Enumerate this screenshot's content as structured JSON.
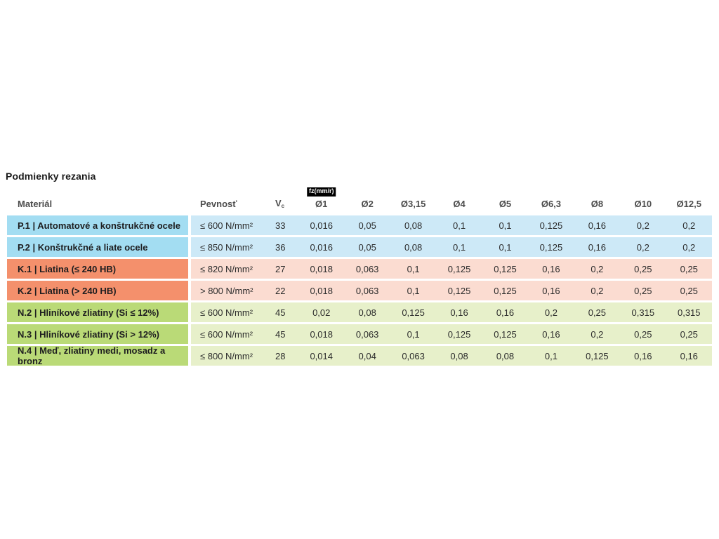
{
  "title": "Podmienky rezania",
  "table": {
    "header": {
      "material": "Materiál",
      "strength": "Pevnosť",
      "vc_base": "V",
      "vc_sub": "c",
      "feed_badge": "fz(mm/r)",
      "diameters": [
        "Ø1",
        "Ø2",
        "Ø3,15",
        "Ø4",
        "Ø5",
        "Ø6,3",
        "Ø8",
        "Ø10",
        "Ø12,5"
      ]
    },
    "group_colors": {
      "P": {
        "label_bg": "#a3ddf2",
        "row_bg": "#cde9f7"
      },
      "K": {
        "label_bg": "#f4906c",
        "row_bg": "#fbdcd1"
      },
      "N": {
        "label_bg": "#bada77",
        "row_bg": "#e7f0ca"
      }
    },
    "rows": [
      {
        "group": "P",
        "material": "P.1 | Automatové a konštrukčné ocele",
        "strength": "≤ 600 N/mm²",
        "vc": "33",
        "feeds": [
          "0,016",
          "0,05",
          "0,08",
          "0,1",
          "0,1",
          "0,125",
          "0,16",
          "0,2",
          "0,2"
        ]
      },
      {
        "group": "P",
        "material": "P.2 | Konštrukčné a liate ocele",
        "strength": "≤ 850 N/mm²",
        "vc": "36",
        "feeds": [
          "0,016",
          "0,05",
          "0,08",
          "0,1",
          "0,1",
          "0,125",
          "0,16",
          "0,2",
          "0,2"
        ]
      },
      {
        "group": "K",
        "material": "K.1 | Liatina (≤ 240 HB)",
        "strength": "≤ 820 N/mm²",
        "vc": "27",
        "feeds": [
          "0,018",
          "0,063",
          "0,1",
          "0,125",
          "0,125",
          "0,16",
          "0,2",
          "0,25",
          "0,25"
        ]
      },
      {
        "group": "K",
        "material": "K.2 | Liatina (> 240 HB)",
        "strength": "> 800 N/mm²",
        "vc": "22",
        "feeds": [
          "0,018",
          "0,063",
          "0,1",
          "0,125",
          "0,125",
          "0,16",
          "0,2",
          "0,25",
          "0,25"
        ]
      },
      {
        "group": "N",
        "material": "N.2 | Hliníkové zliatiny (Si ≤ 12%)",
        "strength": "≤ 600 N/mm²",
        "vc": "45",
        "feeds": [
          "0,02",
          "0,08",
          "0,125",
          "0,16",
          "0,16",
          "0,2",
          "0,25",
          "0,315",
          "0,315"
        ]
      },
      {
        "group": "N",
        "material": "N.3 | Hliníkové zliatiny (Si > 12%)",
        "strength": "≤ 600 N/mm²",
        "vc": "45",
        "feeds": [
          "0,018",
          "0,063",
          "0,1",
          "0,125",
          "0,125",
          "0,16",
          "0,2",
          "0,25",
          "0,25"
        ]
      },
      {
        "group": "N",
        "material": "N.4 | Meď, zliatiny medi, mosadz a bronz",
        "strength": "≤ 800 N/mm²",
        "vc": "28",
        "feeds": [
          "0,014",
          "0,04",
          "0,063",
          "0,08",
          "0,08",
          "0,1",
          "0,125",
          "0,16",
          "0,16"
        ]
      }
    ]
  }
}
